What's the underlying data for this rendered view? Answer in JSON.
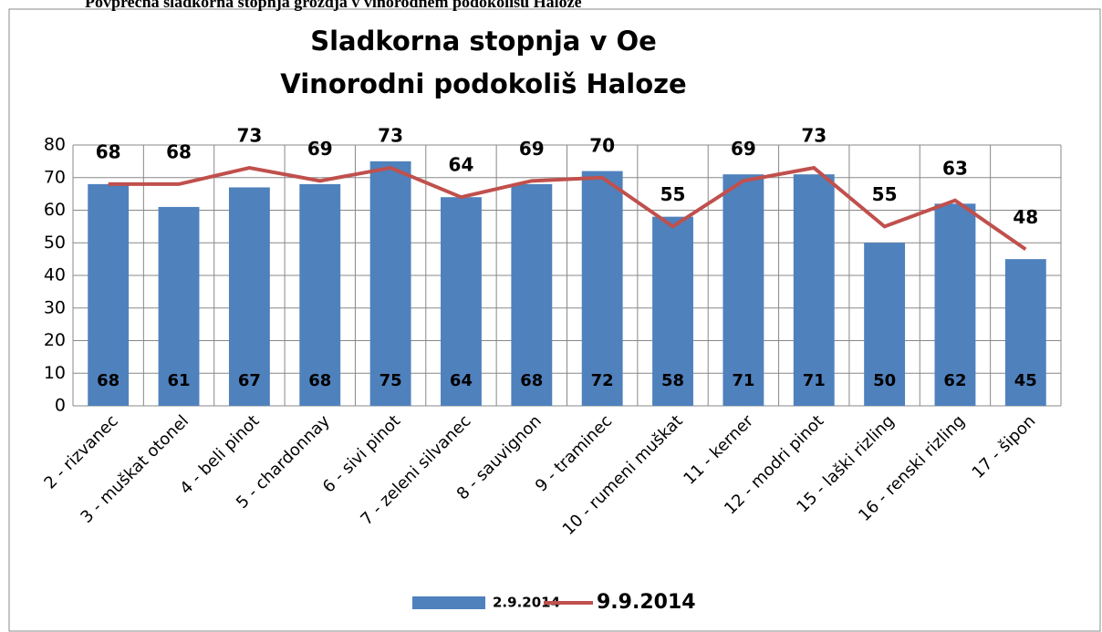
{
  "heading": "Povprečna sladkorna stopnja grozdja v vinorodnem podokolišu Haloze",
  "chart_data": {
    "type": "bar",
    "title": "Sladkorna stopnja v Oe",
    "subtitle": "Vinorodni podokoliš Haloze",
    "categories": [
      "2 - rizvanec",
      "3 - muškat otonel",
      "4 - beli pinot",
      "5 - chardonnay",
      "6 - sivi pinot",
      "7 - zeleni silvanec",
      "8 - sauvignon",
      "9 - traminec",
      "10 - rumeni muškat",
      "11 - kerner",
      "12 - modri pinot",
      "15 - laški rizling",
      "16 - renski rizling",
      "17 - šipon"
    ],
    "series": [
      {
        "name": "2.9.2014",
        "type": "bar",
        "color": "#4f81bd",
        "values": [
          68,
          61,
          67,
          68,
          75,
          64,
          68,
          72,
          58,
          71,
          71,
          50,
          62,
          45
        ]
      },
      {
        "name": "9.9.2014",
        "type": "line",
        "color": "#c0504d",
        "values": [
          68,
          68,
          73,
          69,
          73,
          64,
          69,
          70,
          55,
          69,
          73,
          55,
          63,
          48
        ]
      }
    ],
    "ylim": [
      0,
      80
    ],
    "yticks": [
      0,
      10,
      20,
      30,
      40,
      50,
      60,
      70,
      80
    ],
    "grid": true,
    "legend": "bottom"
  }
}
